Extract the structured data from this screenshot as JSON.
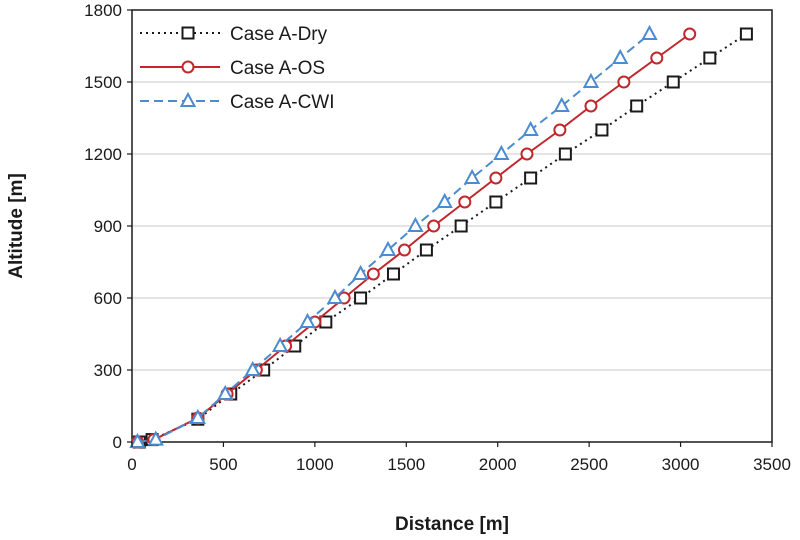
{
  "chart_data": {
    "type": "line",
    "title": "",
    "xlabel": "Distance [m]",
    "ylabel": "Altitude [m]",
    "xlim": [
      0,
      3500
    ],
    "ylim": [
      0,
      1800
    ],
    "xticks": [
      0,
      500,
      1000,
      1500,
      2000,
      2500,
      3000,
      3500
    ],
    "yticks": [
      0,
      300,
      600,
      900,
      1200,
      1500,
      1800
    ],
    "grid": "horizontal",
    "legend_position": "top-left",
    "series": [
      {
        "name": "Case A-Dry",
        "color": "#1a1a1a",
        "marker": "square",
        "line_style": "dotted",
        "x": [
          40,
          110,
          360,
          540,
          720,
          890,
          1060,
          1250,
          1430,
          1610,
          1800,
          1990,
          2180,
          2370,
          2570,
          2760,
          2960,
          3160,
          3360
        ],
        "y": [
          0,
          10,
          95,
          200,
          300,
          400,
          500,
          600,
          700,
          800,
          900,
          1000,
          1100,
          1200,
          1300,
          1400,
          1500,
          1600,
          1700
        ]
      },
      {
        "name": "Case A-OS",
        "color": "#c0282d",
        "marker": "circle",
        "line_style": "solid",
        "x": [
          30,
          120,
          360,
          520,
          680,
          840,
          1000,
          1160,
          1320,
          1490,
          1650,
          1820,
          1990,
          2160,
          2340,
          2510,
          2690,
          2870,
          3050
        ],
        "y": [
          0,
          10,
          100,
          200,
          300,
          400,
          500,
          600,
          700,
          800,
          900,
          1000,
          1100,
          1200,
          1300,
          1400,
          1500,
          1600,
          1700
        ]
      },
      {
        "name": "Case A-CWI",
        "color": "#4a8ccf",
        "marker": "triangle",
        "line_style": "dashed",
        "x": [
          30,
          130,
          360,
          510,
          660,
          810,
          960,
          1110,
          1250,
          1400,
          1550,
          1710,
          1860,
          2020,
          2180,
          2350,
          2510,
          2670,
          2830
        ],
        "y": [
          0,
          10,
          100,
          200,
          300,
          400,
          500,
          600,
          700,
          800,
          900,
          1000,
          1100,
          1200,
          1300,
          1400,
          1500,
          1600,
          1700
        ]
      }
    ]
  }
}
